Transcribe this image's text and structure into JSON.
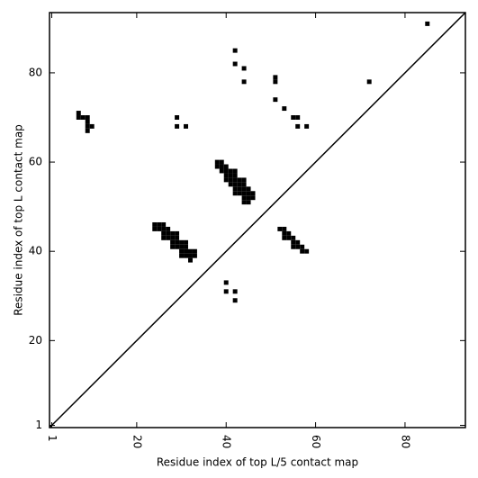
{
  "chart_data": {
    "type": "scatter",
    "xlabel": "Residue index of top L/5 contact map",
    "ylabel": "Residue index of top L contact map",
    "xlim": [
      0.5,
      93.5
    ],
    "ylim": [
      0.5,
      93.5
    ],
    "xticks": [
      1,
      20,
      40,
      60,
      80
    ],
    "yticks": [
      1,
      20,
      40,
      60,
      80
    ],
    "diagonal": true,
    "color": "#000000",
    "x": [
      85,
      42,
      42,
      44,
      44,
      51,
      51,
      72,
      51,
      53,
      55,
      56,
      56,
      58,
      7,
      7,
      8,
      9,
      9,
      9,
      10,
      9,
      29,
      29,
      31,
      38,
      39,
      38,
      39,
      40,
      39,
      40,
      41,
      42,
      40,
      41,
      42,
      40,
      41,
      42,
      43,
      44,
      41,
      42,
      43,
      44,
      42,
      43,
      44,
      45,
      42,
      43,
      44,
      45,
      46,
      44,
      45,
      46,
      44,
      45,
      24,
      25,
      26,
      24,
      25,
      26,
      27,
      26,
      27,
      28,
      29,
      26,
      27,
      28,
      29,
      28,
      29,
      30,
      31,
      28,
      29,
      30,
      31,
      30,
      31,
      32,
      33,
      30,
      31,
      32,
      33,
      32,
      52,
      53,
      53,
      54,
      53,
      54,
      55,
      55,
      56,
      55,
      56,
      57,
      57,
      58,
      40,
      40,
      42,
      42
    ],
    "y": [
      91,
      85,
      82,
      81,
      78,
      79,
      78,
      78,
      74,
      72,
      70,
      70,
      68,
      68,
      71,
      70,
      70,
      70,
      69,
      68,
      68,
      67,
      70,
      68,
      68,
      60,
      60,
      59,
      59,
      59,
      58,
      58,
      58,
      58,
      57,
      57,
      57,
      56,
      56,
      56,
      56,
      56,
      55,
      55,
      55,
      55,
      54,
      54,
      54,
      54,
      53,
      53,
      53,
      53,
      53,
      52,
      52,
      52,
      51,
      51,
      46,
      46,
      46,
      45,
      45,
      45,
      45,
      44,
      44,
      44,
      44,
      43,
      43,
      43,
      43,
      42,
      42,
      42,
      42,
      41,
      41,
      41,
      41,
      40,
      40,
      40,
      40,
      39,
      39,
      39,
      39,
      38,
      45,
      45,
      44,
      44,
      43,
      43,
      43,
      42,
      42,
      41,
      41,
      41,
      40,
      40,
      33,
      31,
      31,
      29
    ]
  }
}
